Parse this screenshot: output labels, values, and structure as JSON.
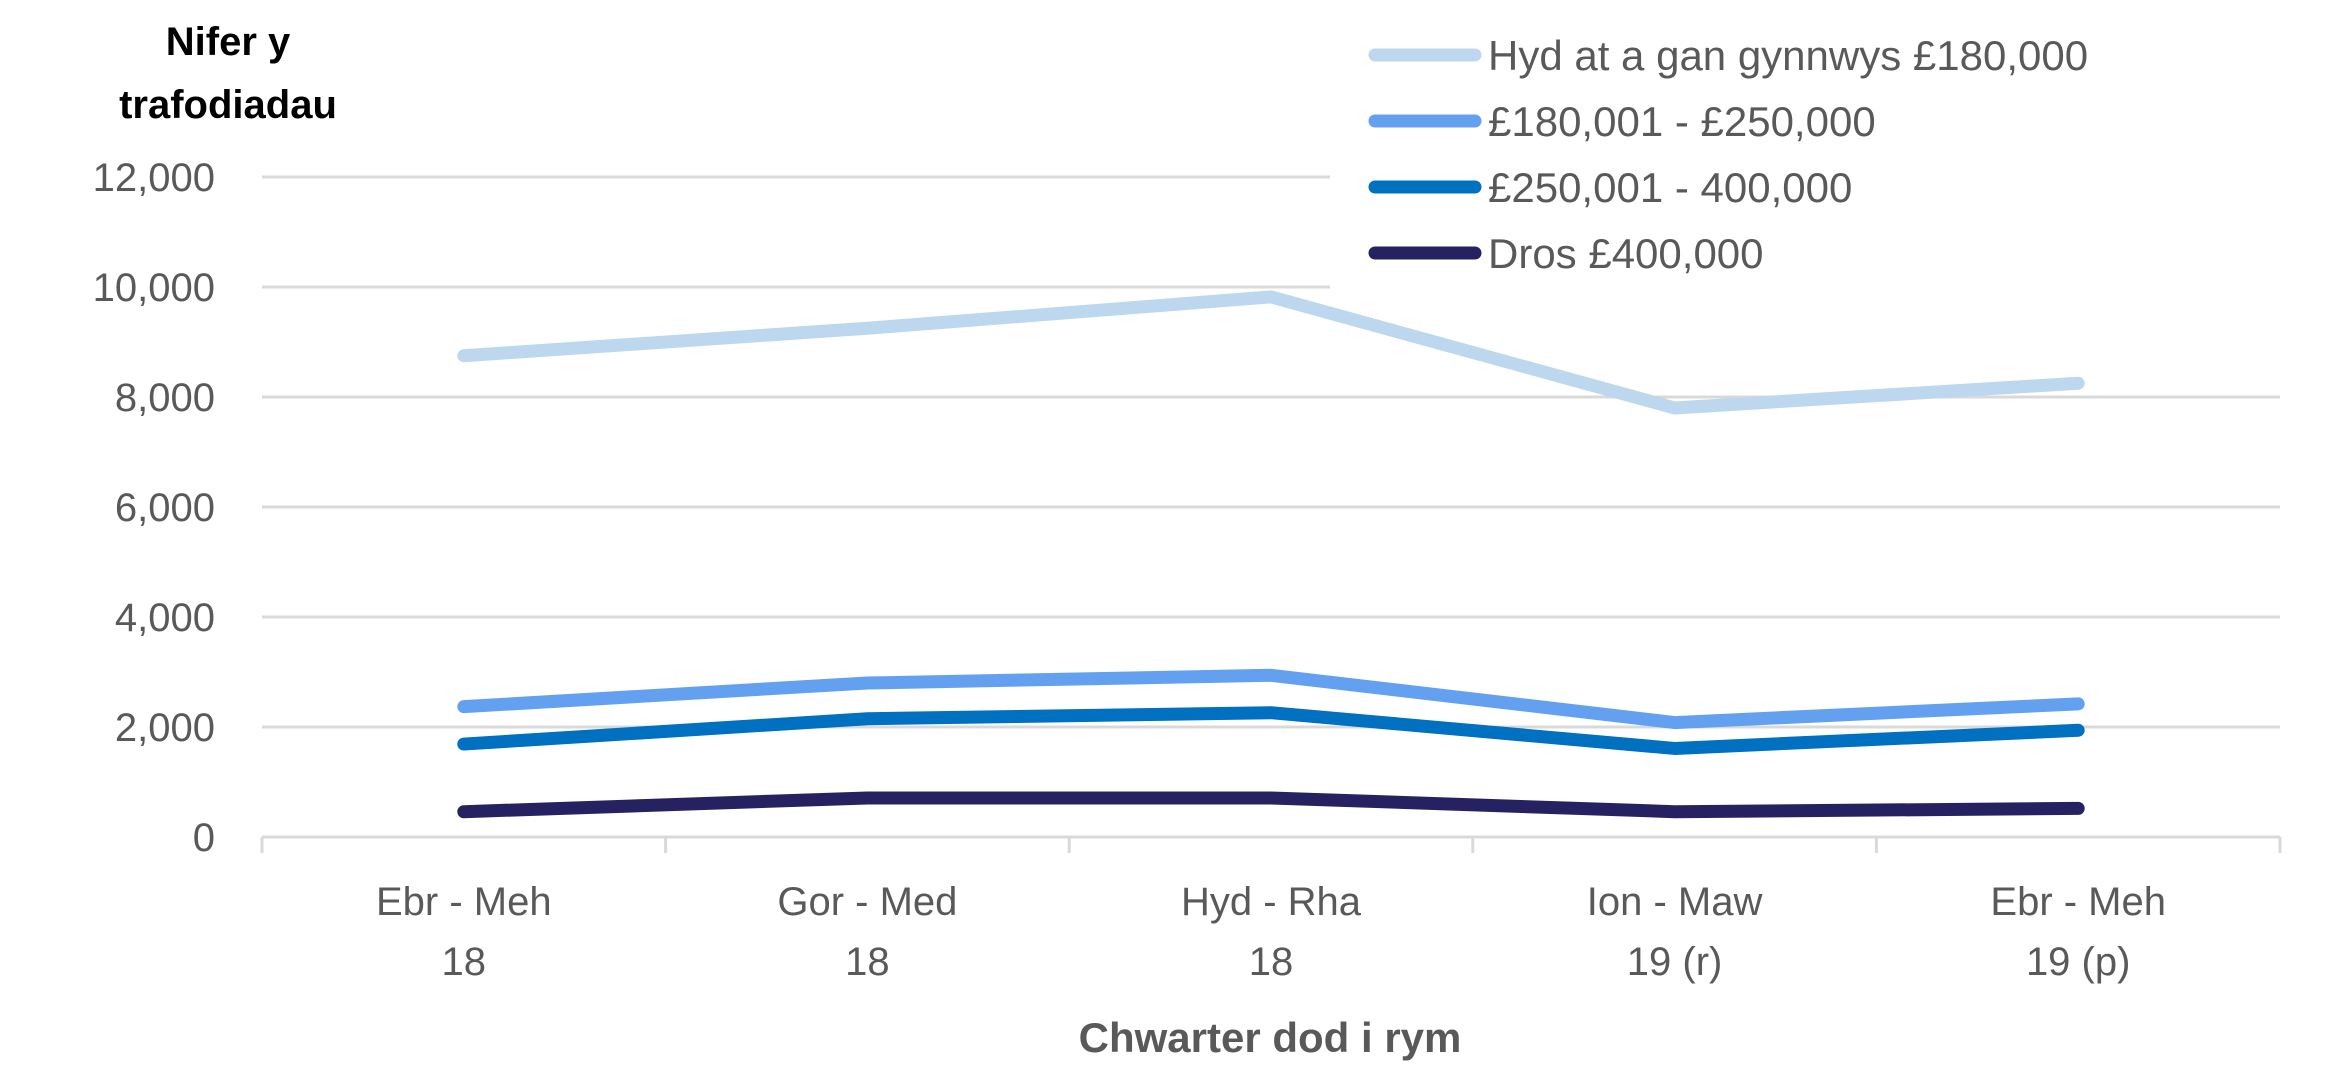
{
  "chart_data": {
    "type": "line",
    "title": "",
    "ylabel": "Nifer y trafodiadau",
    "xlabel": "Chwarter dod i rym",
    "ylim": [
      0,
      12000
    ],
    "yticks": [
      0,
      2000,
      4000,
      6000,
      8000,
      10000,
      12000
    ],
    "ytick_labels": [
      "0",
      "2,000",
      "4,000",
      "6,000",
      "8,000",
      "10,000",
      "12,000"
    ],
    "grid": "horizontal",
    "legend_placement": "top-right",
    "categories": [
      [
        "Ebr - Meh",
        "18"
      ],
      [
        "Gor - Med",
        "18"
      ],
      [
        "Hyd - Rha",
        "18"
      ],
      [
        "Ion - Maw",
        "19 (r)"
      ],
      [
        "Ebr - Meh",
        "19 (p)"
      ]
    ],
    "series": [
      {
        "name": "Hyd at a gan gynnwys £180,000",
        "color": "#bdd7ee",
        "values": [
          8750,
          9250,
          9820,
          7800,
          8250
        ]
      },
      {
        "name": "£180,001 - £250,000",
        "color": "#64a0f0",
        "values": [
          2370,
          2800,
          2940,
          2080,
          2420
        ]
      },
      {
        "name": "£250,001 - 400,000",
        "color": "#0070c0",
        "values": [
          1690,
          2150,
          2260,
          1610,
          1940
        ]
      },
      {
        "name": "Dros £400,000",
        "color": "#262262",
        "values": [
          460,
          710,
          710,
          460,
          520
        ]
      }
    ]
  }
}
